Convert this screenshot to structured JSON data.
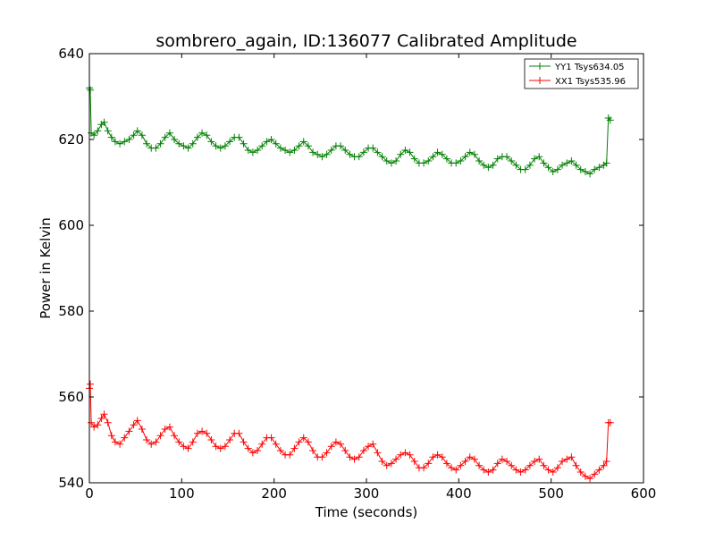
{
  "chart_data": {
    "type": "line",
    "title": "sombrero_again, ID:136077 Calibrated Amplitude",
    "xlabel": "Time (seconds)",
    "ylabel": "Power in Kelvin",
    "xlim": [
      0,
      600
    ],
    "ylim": [
      540,
      640
    ],
    "x_ticks": [
      0,
      100,
      200,
      300,
      400,
      500,
      600
    ],
    "y_ticks": [
      540,
      560,
      580,
      600,
      620,
      640
    ],
    "grid": false,
    "legend_position": "top-right",
    "marker": "+",
    "series": [
      {
        "name": "YY1 Tsys634.05",
        "color": "#008000",
        "points": [
          [
            0,
            632
          ],
          [
            1,
            631.5
          ],
          [
            2,
            621.5
          ],
          [
            5,
            621
          ],
          [
            9,
            622
          ],
          [
            13,
            623.5
          ],
          [
            16,
            624
          ],
          [
            20,
            622
          ],
          [
            24,
            620.5
          ],
          [
            28,
            619.5
          ],
          [
            33,
            619
          ],
          [
            38,
            619.5
          ],
          [
            43,
            620
          ],
          [
            48,
            621
          ],
          [
            52,
            622
          ],
          [
            57,
            621
          ],
          [
            62,
            619
          ],
          [
            67,
            618
          ],
          [
            72,
            618
          ],
          [
            77,
            619
          ],
          [
            82,
            620.5
          ],
          [
            87,
            621.5
          ],
          [
            92,
            620
          ],
          [
            97,
            619
          ],
          [
            102,
            618.5
          ],
          [
            107,
            618
          ],
          [
            112,
            619
          ],
          [
            117,
            620.5
          ],
          [
            122,
            621.5
          ],
          [
            127,
            621
          ],
          [
            132,
            619.5
          ],
          [
            137,
            618.5
          ],
          [
            142,
            618
          ],
          [
            147,
            618.5
          ],
          [
            152,
            619.5
          ],
          [
            157,
            620.5
          ],
          [
            162,
            620.5
          ],
          [
            167,
            619
          ],
          [
            172,
            617.5
          ],
          [
            177,
            617
          ],
          [
            182,
            617.5
          ],
          [
            187,
            618.5
          ],
          [
            192,
            619.5
          ],
          [
            197,
            620
          ],
          [
            202,
            619
          ],
          [
            207,
            618
          ],
          [
            212,
            617.5
          ],
          [
            217,
            617
          ],
          [
            222,
            617.5
          ],
          [
            227,
            618.5
          ],
          [
            232,
            619.5
          ],
          [
            237,
            618.5
          ],
          [
            242,
            617
          ],
          [
            247,
            616.5
          ],
          [
            252,
            616
          ],
          [
            257,
            616.5
          ],
          [
            262,
            617.5
          ],
          [
            267,
            618.5
          ],
          [
            272,
            618.5
          ],
          [
            277,
            617.5
          ],
          [
            282,
            616.5
          ],
          [
            287,
            616
          ],
          [
            292,
            616
          ],
          [
            297,
            617
          ],
          [
            302,
            618
          ],
          [
            307,
            618
          ],
          [
            312,
            617
          ],
          [
            317,
            616
          ],
          [
            322,
            615
          ],
          [
            327,
            614.5
          ],
          [
            332,
            615
          ],
          [
            337,
            616.5
          ],
          [
            342,
            617.5
          ],
          [
            347,
            617
          ],
          [
            352,
            615.5
          ],
          [
            357,
            614.5
          ],
          [
            362,
            614.5
          ],
          [
            367,
            615
          ],
          [
            372,
            616
          ],
          [
            377,
            617
          ],
          [
            382,
            616.5
          ],
          [
            387,
            615.5
          ],
          [
            392,
            614.5
          ],
          [
            397,
            614.5
          ],
          [
            402,
            615
          ],
          [
            407,
            616
          ],
          [
            412,
            617
          ],
          [
            417,
            616.5
          ],
          [
            422,
            615
          ],
          [
            427,
            614
          ],
          [
            432,
            613.5
          ],
          [
            437,
            614
          ],
          [
            442,
            615.5
          ],
          [
            447,
            616
          ],
          [
            452,
            616
          ],
          [
            457,
            615
          ],
          [
            462,
            614
          ],
          [
            467,
            613
          ],
          [
            472,
            613
          ],
          [
            477,
            614
          ],
          [
            482,
            615.5
          ],
          [
            487,
            616
          ],
          [
            492,
            614.5
          ],
          [
            497,
            613.5
          ],
          [
            502,
            612.5
          ],
          [
            507,
            613
          ],
          [
            512,
            614
          ],
          [
            517,
            614.5
          ],
          [
            522,
            615
          ],
          [
            527,
            614
          ],
          [
            532,
            613
          ],
          [
            537,
            612.5
          ],
          [
            542,
            612
          ],
          [
            547,
            613
          ],
          [
            552,
            613.5
          ],
          [
            557,
            614
          ],
          [
            560,
            614.5
          ],
          [
            562,
            625
          ],
          [
            564,
            624.5
          ]
        ]
      },
      {
        "name": "XX1 Tsys535.96",
        "color": "#ff0000",
        "points": [
          [
            0,
            562
          ],
          [
            1,
            563
          ],
          [
            2,
            554
          ],
          [
            5,
            553
          ],
          [
            9,
            553.5
          ],
          [
            13,
            555
          ],
          [
            16,
            556
          ],
          [
            20,
            554
          ],
          [
            24,
            551
          ],
          [
            28,
            549.5
          ],
          [
            33,
            549
          ],
          [
            38,
            550.5
          ],
          [
            43,
            552
          ],
          [
            48,
            553.5
          ],
          [
            52,
            554.5
          ],
          [
            57,
            552.5
          ],
          [
            62,
            550
          ],
          [
            67,
            549
          ],
          [
            72,
            549.5
          ],
          [
            77,
            551
          ],
          [
            82,
            552.5
          ],
          [
            87,
            553
          ],
          [
            92,
            551
          ],
          [
            97,
            549.5
          ],
          [
            102,
            548.5
          ],
          [
            107,
            548
          ],
          [
            112,
            549.5
          ],
          [
            117,
            551.5
          ],
          [
            122,
            552
          ],
          [
            127,
            551.5
          ],
          [
            132,
            550
          ],
          [
            137,
            548.5
          ],
          [
            142,
            548
          ],
          [
            147,
            548.5
          ],
          [
            152,
            550
          ],
          [
            157,
            551.5
          ],
          [
            162,
            551.5
          ],
          [
            167,
            549.5
          ],
          [
            172,
            548
          ],
          [
            177,
            547
          ],
          [
            182,
            547.5
          ],
          [
            187,
            549
          ],
          [
            192,
            550.5
          ],
          [
            197,
            550.5
          ],
          [
            202,
            549
          ],
          [
            207,
            547.5
          ],
          [
            212,
            546.5
          ],
          [
            217,
            546.5
          ],
          [
            222,
            548
          ],
          [
            227,
            549.5
          ],
          [
            232,
            550.5
          ],
          [
            237,
            549.5
          ],
          [
            242,
            547.5
          ],
          [
            247,
            546
          ],
          [
            252,
            546
          ],
          [
            257,
            547
          ],
          [
            262,
            548.5
          ],
          [
            267,
            549.5
          ],
          [
            272,
            549
          ],
          [
            277,
            547.5
          ],
          [
            282,
            546
          ],
          [
            287,
            545.5
          ],
          [
            292,
            546
          ],
          [
            297,
            547.5
          ],
          [
            302,
            548.5
          ],
          [
            307,
            549
          ],
          [
            312,
            547
          ],
          [
            317,
            545
          ],
          [
            322,
            544
          ],
          [
            327,
            544.5
          ],
          [
            332,
            545.5
          ],
          [
            337,
            546.5
          ],
          [
            342,
            547
          ],
          [
            347,
            546.5
          ],
          [
            352,
            545
          ],
          [
            357,
            543.5
          ],
          [
            362,
            543.5
          ],
          [
            367,
            544.5
          ],
          [
            372,
            546
          ],
          [
            377,
            546.5
          ],
          [
            382,
            546
          ],
          [
            387,
            544.5
          ],
          [
            392,
            543.5
          ],
          [
            397,
            543
          ],
          [
            402,
            544
          ],
          [
            407,
            545
          ],
          [
            412,
            546
          ],
          [
            417,
            545.5
          ],
          [
            422,
            544
          ],
          [
            427,
            543
          ],
          [
            432,
            542.5
          ],
          [
            437,
            543
          ],
          [
            442,
            544.5
          ],
          [
            447,
            545.5
          ],
          [
            452,
            545
          ],
          [
            457,
            544
          ],
          [
            462,
            543
          ],
          [
            467,
            542.5
          ],
          [
            472,
            543
          ],
          [
            477,
            544
          ],
          [
            482,
            545
          ],
          [
            487,
            545.5
          ],
          [
            492,
            544
          ],
          [
            497,
            543
          ],
          [
            502,
            542.5
          ],
          [
            507,
            543.5
          ],
          [
            512,
            545
          ],
          [
            517,
            545.5
          ],
          [
            522,
            546
          ],
          [
            527,
            544
          ],
          [
            532,
            542.5
          ],
          [
            537,
            541.5
          ],
          [
            542,
            541
          ],
          [
            547,
            542
          ],
          [
            552,
            543
          ],
          [
            557,
            544
          ],
          [
            560,
            545
          ],
          [
            562,
            554
          ],
          [
            564,
            554
          ]
        ]
      }
    ]
  }
}
